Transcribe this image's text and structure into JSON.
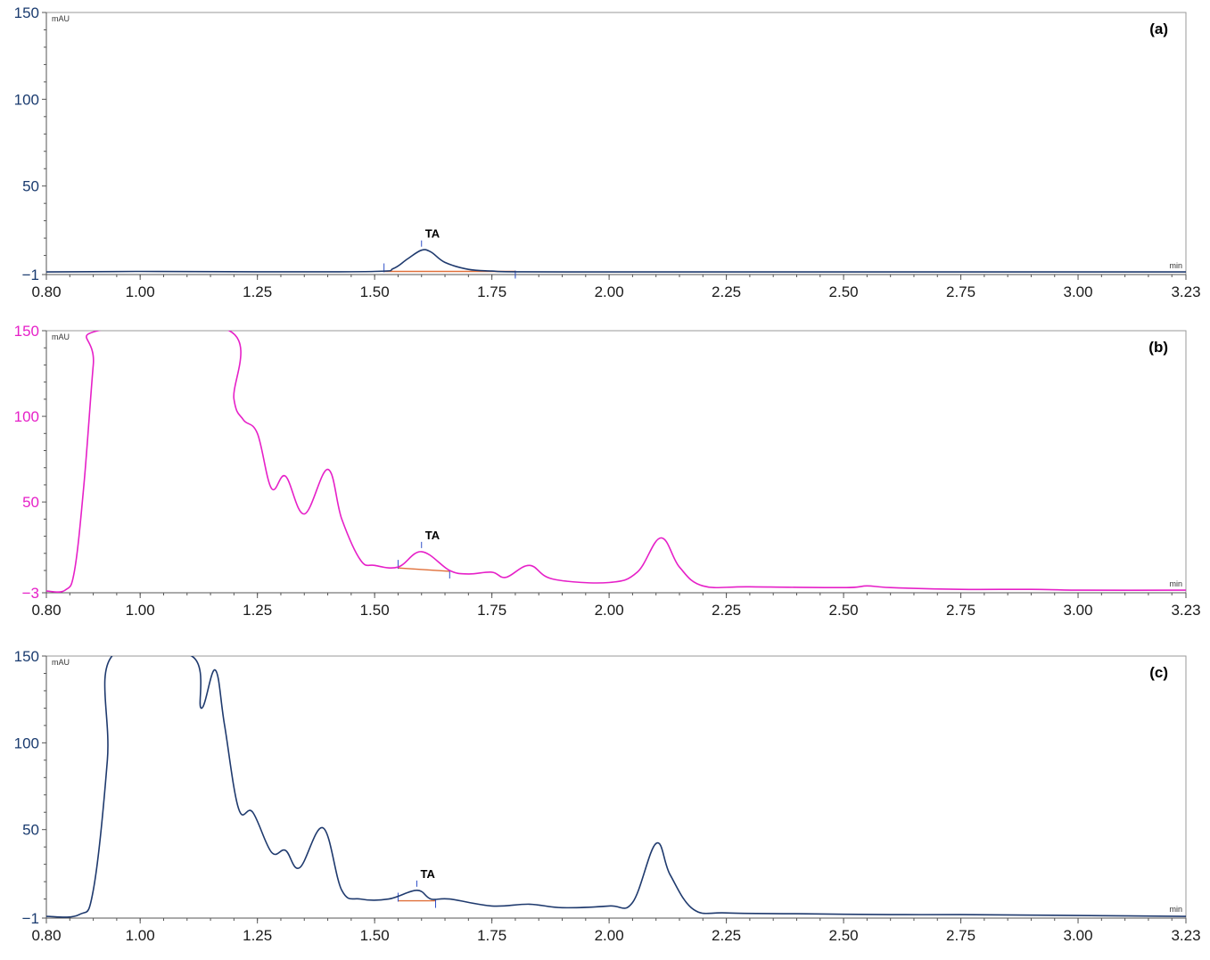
{
  "chart_data": [
    {
      "type": "line",
      "panel_label": "(a)",
      "y_unit_label": "mAU",
      "x_unit_label": "min",
      "xlim": [
        0.8,
        3.23
      ],
      "ylim": [
        -1,
        150
      ],
      "x_ticks": [
        "0.80",
        "1.00",
        "1.25",
        "1.50",
        "1.75",
        "2.00",
        "2.25",
        "2.50",
        "2.75",
        "3.00",
        "3.23"
      ],
      "y_ticks": [
        "150",
        "100",
        "50",
        "−1"
      ],
      "line_color": "#1f3a6e",
      "annotations": [
        {
          "text": "TA",
          "x": 1.6
        }
      ],
      "integration": {
        "start": 1.52,
        "end": 1.8,
        "baseline": [
          0.8,
          0.8
        ]
      },
      "series": [
        {
          "x": [
            0.8,
            1.0,
            1.25,
            1.5,
            1.54,
            1.57,
            1.6,
            1.62,
            1.65,
            1.7,
            1.75,
            1.8,
            2.0,
            2.5,
            3.0,
            3.23
          ],
          "y": [
            0.5,
            0.8,
            0.6,
            0.8,
            2.5,
            8,
            13,
            12,
            6,
            2,
            1,
            0.6,
            0.5,
            0.5,
            0.5,
            0.5
          ]
        }
      ]
    },
    {
      "type": "line",
      "panel_label": "(b)",
      "y_unit_label": "mAU",
      "x_unit_label": "min",
      "xlim": [
        0.8,
        3.23
      ],
      "ylim": [
        -3,
        150
      ],
      "x_ticks": [
        "0.80",
        "1.00",
        "1.25",
        "1.50",
        "1.75",
        "2.00",
        "2.25",
        "2.50",
        "2.75",
        "3.00",
        "3.23"
      ],
      "y_ticks": [
        "150",
        "100",
        "50",
        "−3"
      ],
      "line_color": "#e620c8",
      "annotations": [
        {
          "text": "TA",
          "x": 1.6
        }
      ],
      "integration": {
        "start": 1.55,
        "end": 1.66,
        "baseline": [
          11.5,
          9.5
        ]
      },
      "series": [
        {
          "x": [
            0.8,
            0.84,
            0.86,
            0.88,
            0.9,
            0.91,
            1.19,
            1.2,
            1.22,
            1.25,
            1.28,
            1.31,
            1.35,
            1.4,
            1.43,
            1.47,
            1.5,
            1.55,
            1.6,
            1.66,
            1.7,
            1.75,
            1.78,
            1.83,
            1.88,
            2.0,
            2.06,
            2.11,
            2.15,
            2.2,
            2.3,
            2.5,
            2.55,
            2.6,
            2.75,
            2.9,
            3.0,
            3.23
          ],
          "y": [
            -2,
            -1.5,
            10,
            60,
            130,
            150,
            150,
            110,
            98,
            90,
            58,
            65,
            43,
            69,
            40,
            16,
            13,
            12,
            21,
            10,
            8,
            9,
            6,
            13,
            5,
            3,
            9,
            29,
            12,
            1,
            0.5,
            0,
            1,
            0,
            -1,
            -1,
            -1.5,
            -1.5
          ]
        }
      ]
    },
    {
      "type": "line",
      "panel_label": "(c)",
      "y_unit_label": "mAU",
      "x_unit_label": "min",
      "xlim": [
        0.8,
        3.23
      ],
      "ylim": [
        -1,
        150
      ],
      "x_ticks": [
        "0.80",
        "1.00",
        "1.25",
        "1.50",
        "1.75",
        "2.00",
        "2.25",
        "2.50",
        "2.75",
        "3.00",
        "3.23"
      ],
      "y_ticks": [
        "150",
        "100",
        "50",
        "−1"
      ],
      "line_color": "#1f3a6e",
      "annotations": [
        {
          "text": "TA",
          "x": 1.59
        }
      ],
      "integration": {
        "start": 1.55,
        "end": 1.63,
        "baseline": [
          9.0,
          9.0
        ]
      },
      "series": [
        {
          "x": [
            0.8,
            0.87,
            0.9,
            0.93,
            0.94,
            1.11,
            1.13,
            1.16,
            1.18,
            1.21,
            1.24,
            1.28,
            1.31,
            1.34,
            1.39,
            1.43,
            1.47,
            1.53,
            1.59,
            1.62,
            1.66,
            1.75,
            1.83,
            1.9,
            2.0,
            2.05,
            2.1,
            2.13,
            2.18,
            2.25,
            2.4,
            2.6,
            2.75,
            3.0,
            3.23
          ],
          "y": [
            0,
            1,
            15,
            90,
            150,
            150,
            120,
            142,
            110,
            62,
            60,
            37,
            38,
            28,
            51,
            15,
            10,
            10,
            15,
            10,
            10,
            6,
            7,
            5,
            6,
            8,
            42,
            24,
            4,
            2,
            1.5,
            1,
            1,
            0.5,
            0
          ]
        }
      ]
    }
  ]
}
